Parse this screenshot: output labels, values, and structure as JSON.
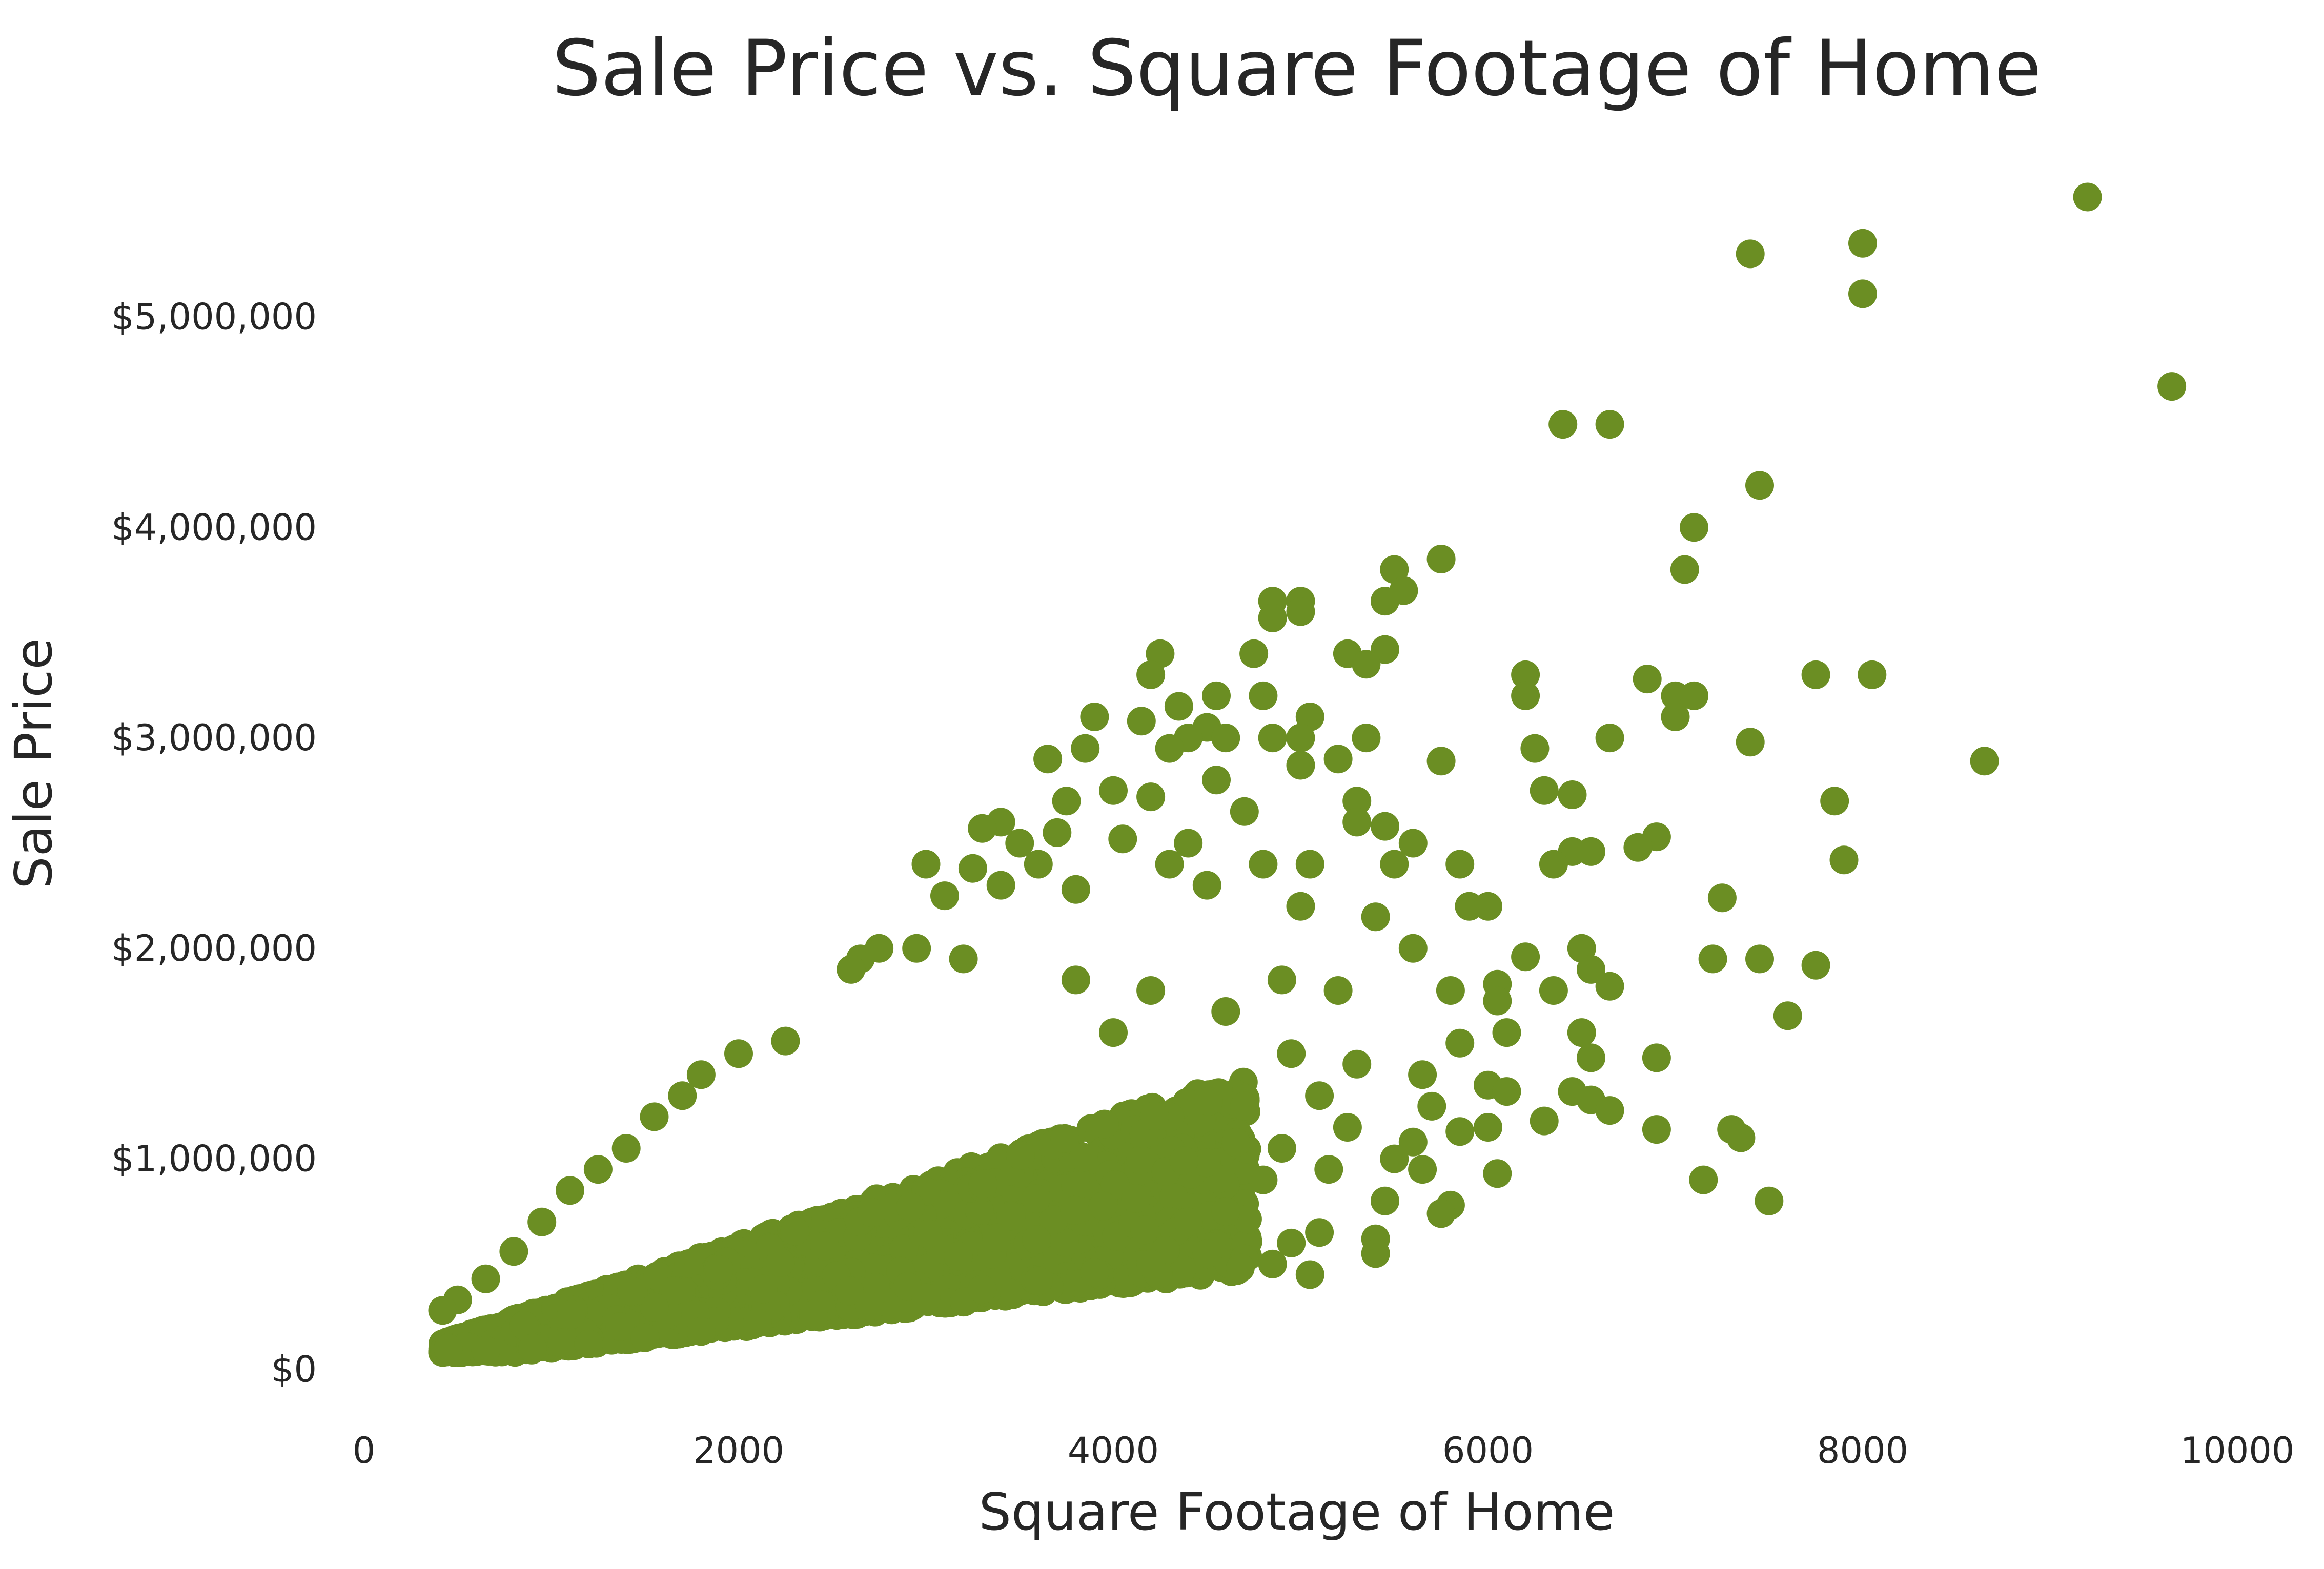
{
  "chart_data": {
    "type": "scatter",
    "title": "Sale Price vs. Square Footage of Home",
    "xlabel": "Square Footage of Home",
    "ylabel": "Sale Price",
    "xlim": [
      0,
      10000
    ],
    "ylim": [
      -250000,
      5800000
    ],
    "grid": false,
    "marker_color": "#6b8e23",
    "background": "#ffffff",
    "x_ticks": [
      {
        "value": 0,
        "label": "0"
      },
      {
        "value": 2000,
        "label": "2000"
      },
      {
        "value": 4000,
        "label": "4000"
      },
      {
        "value": 6000,
        "label": "6000"
      },
      {
        "value": 8000,
        "label": "8000"
      },
      {
        "value": 10000,
        "label": "10000"
      }
    ],
    "y_ticks": [
      {
        "value": 0,
        "label": "$0"
      },
      {
        "value": 1000000,
        "label": "$1,000,000"
      },
      {
        "value": 2000000,
        "label": "$2,000,000"
      },
      {
        "value": 3000000,
        "label": "$3,000,000"
      },
      {
        "value": 4000000,
        "label": "$4,000,000"
      },
      {
        "value": 5000000,
        "label": "$5,000,000"
      }
    ],
    "points": [
      [
        9200,
        5570000
      ],
      [
        8000,
        5350000
      ],
      [
        7400,
        5300000
      ],
      [
        8000,
        5110000
      ],
      [
        9650,
        4670000
      ],
      [
        6400,
        4490000
      ],
      [
        6650,
        4490000
      ],
      [
        7450,
        4200000
      ],
      [
        7100,
        4000000
      ],
      [
        7050,
        3800000
      ],
      [
        5750,
        3850000
      ],
      [
        5500,
        3800000
      ],
      [
        5550,
        3700000
      ],
      [
        5450,
        3650000
      ],
      [
        4850,
        3650000
      ],
      [
        5000,
        3650000
      ],
      [
        4850,
        3570000
      ],
      [
        5000,
        3600000
      ],
      [
        4250,
        3400000
      ],
      [
        4750,
        3400000
      ],
      [
        5250,
        3400000
      ],
      [
        5450,
        3420000
      ],
      [
        5350,
        3350000
      ],
      [
        4200,
        3300000
      ],
      [
        6200,
        3300000
      ],
      [
        7750,
        3300000
      ],
      [
        8050,
        3300000
      ],
      [
        6850,
        3280000
      ],
      [
        6200,
        3200000
      ],
      [
        7000,
        3200000
      ],
      [
        7100,
        3200000
      ],
      [
        4800,
        3200000
      ],
      [
        4550,
        3200000
      ],
      [
        4350,
        3150000
      ],
      [
        5050,
        3100000
      ],
      [
        3900,
        3100000
      ],
      [
        4150,
        3080000
      ],
      [
        7000,
        3100000
      ],
      [
        4500,
        3050000
      ],
      [
        4600,
        3000000
      ],
      [
        4400,
        3000000
      ],
      [
        4850,
        3000000
      ],
      [
        5000,
        3000000
      ],
      [
        5350,
        3000000
      ],
      [
        6650,
        3000000
      ],
      [
        7400,
        2980000
      ],
      [
        6250,
        2950000
      ],
      [
        3850,
        2950000
      ],
      [
        3650,
        2900000
      ],
      [
        4300,
        2950000
      ],
      [
        5000,
        2870000
      ],
      [
        5200,
        2900000
      ],
      [
        5750,
        2890000
      ],
      [
        8650,
        2890000
      ],
      [
        4550,
        2800000
      ],
      [
        4000,
        2750000
      ],
      [
        4200,
        2720000
      ],
      [
        3750,
        2700000
      ],
      [
        5300,
        2700000
      ],
      [
        6300,
        2750000
      ],
      [
        6450,
        2730000
      ],
      [
        7850,
        2700000
      ],
      [
        4700,
        2650000
      ],
      [
        3400,
        2600000
      ],
      [
        3300,
        2570000
      ],
      [
        3500,
        2500000
      ],
      [
        3700,
        2550000
      ],
      [
        4050,
        2520000
      ],
      [
        4400,
        2500000
      ],
      [
        5300,
        2600000
      ],
      [
        5450,
        2580000
      ],
      [
        5600,
        2500000
      ],
      [
        6900,
        2530000
      ],
      [
        6800,
        2480000
      ],
      [
        6450,
        2460000
      ],
      [
        6550,
        2460000
      ],
      [
        3000,
        2400000
      ],
      [
        3250,
        2380000
      ],
      [
        3600,
        2400000
      ],
      [
        4300,
        2400000
      ],
      [
        4800,
        2400000
      ],
      [
        5050,
        2400000
      ],
      [
        5500,
        2400000
      ],
      [
        5850,
        2400000
      ],
      [
        6350,
        2400000
      ],
      [
        7900,
        2420000
      ],
      [
        3100,
        2250000
      ],
      [
        3400,
        2300000
      ],
      [
        3800,
        2280000
      ],
      [
        4500,
        2300000
      ],
      [
        5000,
        2200000
      ],
      [
        5400,
        2150000
      ],
      [
        5900,
        2200000
      ],
      [
        6000,
        2200000
      ],
      [
        7250,
        2240000
      ],
      [
        2650,
        1950000
      ],
      [
        2750,
        2000000
      ],
      [
        2950,
        2000000
      ],
      [
        3200,
        1950000
      ],
      [
        5600,
        2000000
      ],
      [
        6200,
        1960000
      ],
      [
        6500,
        2000000
      ],
      [
        7200,
        1950000
      ],
      [
        7450,
        1950000
      ],
      [
        7750,
        1920000
      ],
      [
        6550,
        1900000
      ],
      [
        6050,
        1830000
      ],
      [
        6650,
        1820000
      ],
      [
        6350,
        1800000
      ],
      [
        5800,
        1800000
      ],
      [
        6050,
        1750000
      ],
      [
        7600,
        1680000
      ],
      [
        6500,
        1600000
      ],
      [
        6100,
        1600000
      ],
      [
        5850,
        1550000
      ],
      [
        6550,
        1480000
      ],
      [
        6900,
        1480000
      ],
      [
        5650,
        1400000
      ],
      [
        6000,
        1350000
      ],
      [
        6450,
        1320000
      ],
      [
        6100,
        1320000
      ],
      [
        6550,
        1280000
      ],
      [
        6650,
        1230000
      ],
      [
        5700,
        1250000
      ],
      [
        6300,
        1180000
      ],
      [
        6000,
        1150000
      ],
      [
        5850,
        1130000
      ],
      [
        6900,
        1140000
      ],
      [
        7300,
        1140000
      ],
      [
        7350,
        1100000
      ],
      [
        5600,
        1080000
      ],
      [
        5500,
        1000000
      ],
      [
        5650,
        950000
      ],
      [
        6050,
        930000
      ],
      [
        7150,
        900000
      ],
      [
        7500,
        800000
      ],
      [
        5800,
        780000
      ],
      [
        5750,
        740000
      ],
      [
        5450,
        800000
      ],
      [
        5400,
        620000
      ],
      [
        5400,
        550000
      ],
      [
        5100,
        650000
      ],
      [
        4950,
        600000
      ],
      [
        5050,
        450000
      ],
      [
        4850,
        500000
      ],
      [
        2250,
        1560000
      ],
      [
        2000,
        1500000
      ],
      [
        1800,
        1400000
      ],
      [
        1700,
        1300000
      ],
      [
        1550,
        1200000
      ],
      [
        1400,
        1050000
      ],
      [
        1250,
        950000
      ],
      [
        1100,
        850000
      ],
      [
        950,
        700000
      ],
      [
        800,
        560000
      ],
      [
        650,
        430000
      ],
      [
        500,
        330000
      ],
      [
        420,
        280000
      ],
      [
        450,
        100000
      ],
      [
        650,
        90000
      ],
      [
        900,
        100000
      ],
      [
        1200,
        120000
      ],
      [
        1500,
        150000
      ],
      [
        1800,
        180000
      ],
      [
        2100,
        220000
      ],
      [
        2400,
        260000
      ],
      [
        2700,
        300000
      ],
      [
        3000,
        340000
      ],
      [
        3300,
        380000
      ],
      [
        3600,
        420000
      ],
      [
        3900,
        460000
      ],
      [
        4200,
        500000
      ],
      [
        4500,
        550000
      ],
      [
        2600,
        1900000
      ],
      [
        3800,
        1850000
      ],
      [
        4200,
        1800000
      ],
      [
        4900,
        1850000
      ],
      [
        5200,
        1800000
      ],
      [
        4600,
        1700000
      ],
      [
        4000,
        1600000
      ],
      [
        4950,
        1500000
      ],
      [
        5300,
        1450000
      ],
      [
        5100,
        1300000
      ],
      [
        4700,
        1250000
      ],
      [
        5250,
        1150000
      ],
      [
        4900,
        1050000
      ],
      [
        5150,
        950000
      ],
      [
        4800,
        900000
      ],
      [
        4600,
        750000
      ],
      [
        4400,
        700000
      ]
    ]
  }
}
